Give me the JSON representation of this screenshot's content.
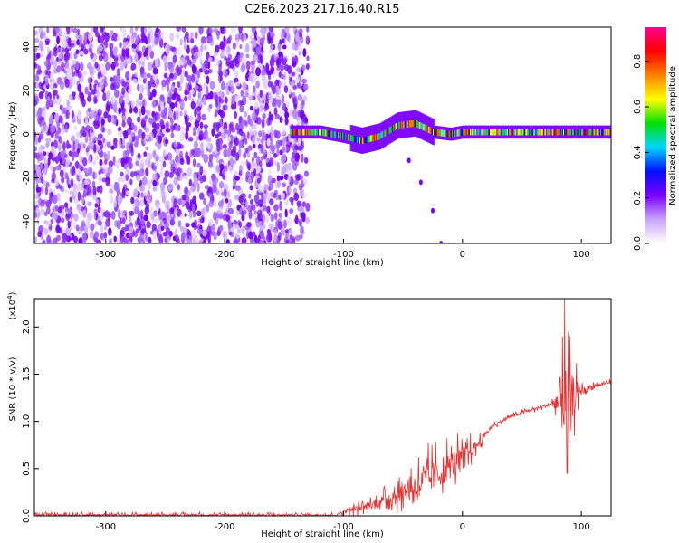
{
  "title": "C2E6.2023.217.16.40.R15",
  "chart_data": [
    {
      "type": "heatmap",
      "xlabel": "Height of straight line (km)",
      "ylabel": "Frequency (Hz)",
      "xlim": [
        -360,
        125
      ],
      "ylim": [
        -50,
        49
      ],
      "x_ticks": [
        -300,
        -200,
        -100,
        0,
        100
      ],
      "y_ticks": [
        -40,
        -20,
        0,
        20,
        40
      ],
      "colorbar": {
        "label": "Normalized spectral amplitude",
        "range": [
          0.0,
          0.95
        ],
        "ticks": [
          "0.0",
          "0.2",
          "0.4",
          "0.6",
          "0.8"
        ],
        "colors": [
          "#ffffff",
          "#c9a4ff",
          "#7a00ff",
          "#0010ff",
          "#00d4ff",
          "#00e000",
          "#ffff00",
          "#ff8000",
          "#ff0000",
          "#ff0090"
        ]
      },
      "features": {
        "noise_region_x": [
          -360,
          -130
        ],
        "band_x": [
          -145,
          125
        ],
        "band_center_hz": [
          [
            -145,
            1
          ],
          [
            -120,
            1
          ],
          [
            -100,
            -1
          ],
          [
            -85,
            -3
          ],
          [
            -70,
            -1
          ],
          [
            -55,
            4
          ],
          [
            -40,
            5
          ],
          [
            -25,
            1
          ],
          [
            -10,
            0
          ],
          [
            0,
            1
          ],
          [
            40,
            1
          ],
          [
            80,
            1
          ],
          [
            125,
            1
          ]
        ],
        "streak": [
          [
            -45,
            -12
          ],
          [
            -35,
            -22
          ],
          [
            -25,
            -35
          ],
          [
            -18,
            -50
          ]
        ]
      }
    },
    {
      "type": "line",
      "xlabel": "Height of straight line (km)",
      "ylabel": "SNR (10 * v/v)",
      "yscale_label": "(x10",
      "yscale_exp": "4",
      "yscale_close": ")",
      "xlim": [
        -360,
        125
      ],
      "ylim": [
        0.0,
        2.3
      ],
      "x_ticks": [
        -300,
        -200,
        -100,
        0,
        100
      ],
      "y_ticks": [
        "0.0",
        "0.5",
        "1.0",
        "1.5",
        "2.0"
      ],
      "y_tick_values": [
        0.0,
        0.5,
        1.0,
        1.5,
        2.0
      ],
      "color": "#e83030",
      "trend": [
        [
          -360,
          0.01
        ],
        [
          -105,
          0.01
        ],
        [
          -100,
          0.05
        ],
        [
          -80,
          0.1
        ],
        [
          -60,
          0.2
        ],
        [
          -40,
          0.32
        ],
        [
          -20,
          0.45
        ],
        [
          0,
          0.62
        ],
        [
          10,
          0.72
        ],
        [
          25,
          0.95
        ],
        [
          40,
          1.05
        ],
        [
          60,
          1.13
        ],
        [
          80,
          1.2
        ],
        [
          90,
          1.25
        ],
        [
          100,
          1.32
        ],
        [
          110,
          1.37
        ],
        [
          125,
          1.42
        ]
      ],
      "jitter": [
        [
          -105,
          0.03
        ],
        [
          -90,
          0.08
        ],
        [
          -70,
          0.12
        ],
        [
          -50,
          0.25
        ],
        [
          -30,
          0.4
        ],
        [
          -10,
          0.35
        ],
        [
          0,
          0.28
        ],
        [
          15,
          0.1
        ],
        [
          25,
          0.04
        ],
        [
          75,
          0.04
        ],
        [
          80,
          0.5
        ],
        [
          85,
          0.9
        ],
        [
          92,
          0.6
        ],
        [
          100,
          0.1
        ],
        [
          110,
          0.08
        ],
        [
          125,
          0.03
        ]
      ],
      "spikes": [
        [
          86,
          2.3
        ],
        [
          89,
          1.95
        ],
        [
          84,
          1.9
        ],
        [
          88,
          0.45
        ]
      ]
    }
  ]
}
